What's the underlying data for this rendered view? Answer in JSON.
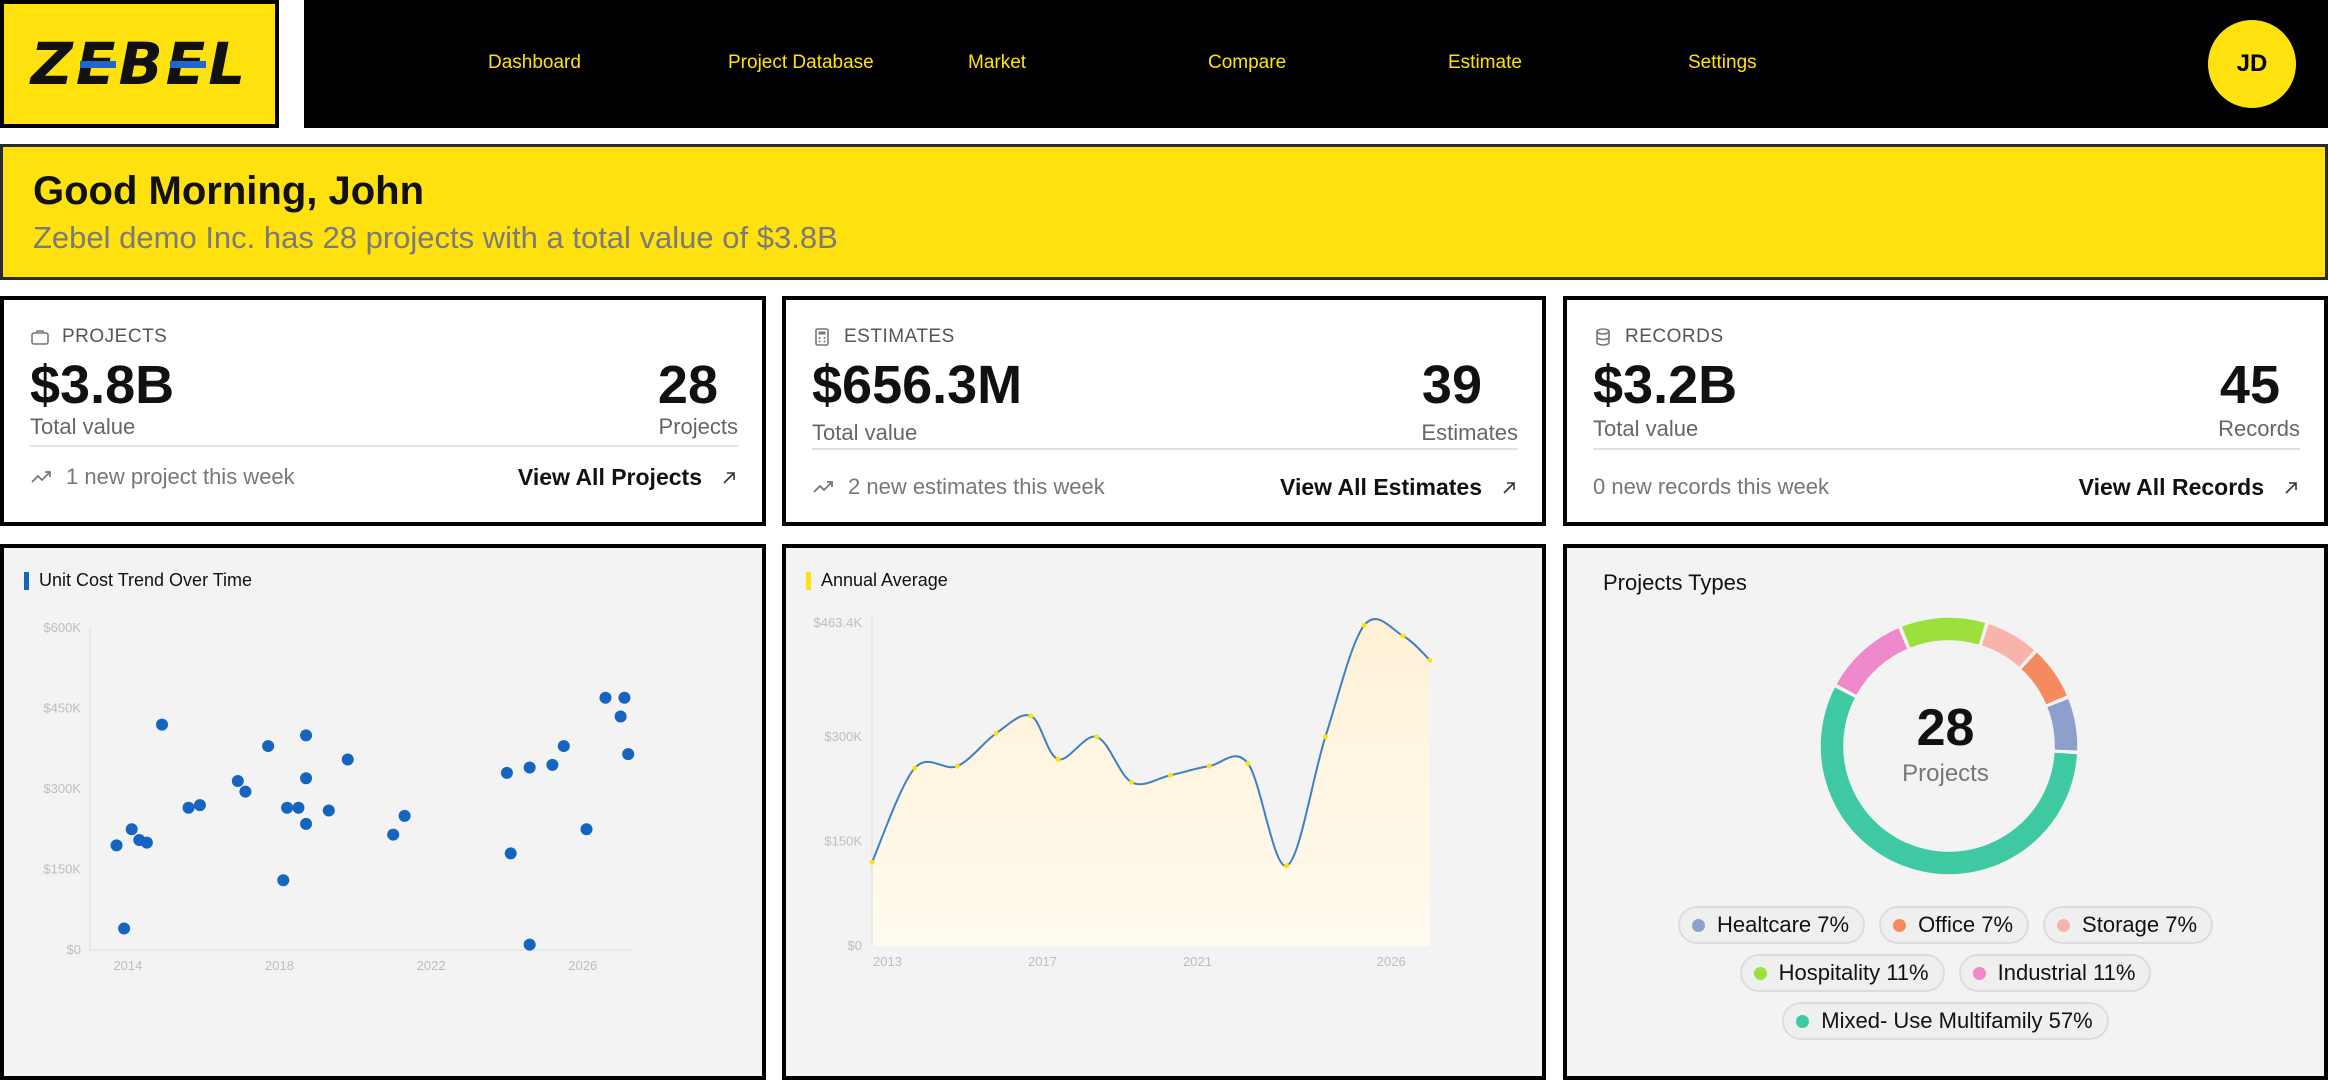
{
  "logo": {
    "letters": [
      "Z",
      "E",
      "B",
      "E",
      "L"
    ]
  },
  "nav": {
    "items": [
      "Dashboard",
      "Project Database",
      "Market",
      "Compare",
      "Estimate",
      "Settings"
    ],
    "avatar_initials": "JD"
  },
  "greeting": {
    "title": "Good Morning, John",
    "subtitle": "Zebel demo Inc. has 28 projects with a total value of $3.8B"
  },
  "stats": {
    "projects": {
      "header": "PROJECTS",
      "value": "$3.8B",
      "value_caption": "Total value",
      "count": "28",
      "count_caption": "Projects",
      "footer": "1 new project this week",
      "link": "View All Projects"
    },
    "estimates": {
      "header": "ESTIMATES",
      "value": "$656.3M",
      "value_caption": "Total value",
      "count": "39",
      "count_caption": "Estimates",
      "footer": "2 new estimates this week",
      "link": "View All Estimates"
    },
    "records": {
      "header": "RECORDS",
      "value": "$3.2B",
      "value_caption": "Total value",
      "count": "45",
      "count_caption": "Records",
      "footer": "0 new records this week",
      "link": "View All Records"
    }
  },
  "colors": {
    "accent": "#FFE20D",
    "navbar": "#000000",
    "scatter": "#1565C0",
    "line": "#3F7FC4",
    "area_fill": "#FFF8E6"
  },
  "chart_data": [
    {
      "type": "scatter",
      "title": "Unit Cost Trend Over Time",
      "y_tick_labels": [
        "$0",
        "$150K",
        "$300K",
        "$450K",
        "$600K"
      ],
      "y_ticks": [
        0,
        150000,
        300000,
        450000,
        600000
      ],
      "x_tick_labels": [
        "2014",
        "2018",
        "2022",
        "2026"
      ],
      "x_ticks": [
        2014,
        2018,
        2022,
        2026
      ],
      "xlim": [
        2013,
        2027.3
      ],
      "ylim": [
        0,
        600000
      ],
      "points": [
        [
          2013.7,
          195000
        ],
        [
          2013.9,
          40000
        ],
        [
          2014.1,
          225000
        ],
        [
          2014.3,
          205000
        ],
        [
          2014.5,
          200000
        ],
        [
          2014.9,
          420000
        ],
        [
          2015.6,
          265000
        ],
        [
          2015.9,
          270000
        ],
        [
          2016.9,
          315000
        ],
        [
          2017.1,
          295000
        ],
        [
          2017.7,
          380000
        ],
        [
          2018.1,
          130000
        ],
        [
          2018.2,
          265000
        ],
        [
          2018.5,
          265000
        ],
        [
          2018.7,
          400000
        ],
        [
          2018.7,
          320000
        ],
        [
          2018.7,
          235000
        ],
        [
          2019.3,
          260000
        ],
        [
          2019.8,
          355000
        ],
        [
          2021.0,
          215000
        ],
        [
          2021.3,
          250000
        ],
        [
          2024.0,
          330000
        ],
        [
          2024.1,
          180000
        ],
        [
          2024.6,
          10000
        ],
        [
          2024.6,
          340000
        ],
        [
          2025.2,
          345000
        ],
        [
          2025.5,
          380000
        ],
        [
          2026.1,
          225000
        ],
        [
          2026.6,
          470000
        ],
        [
          2027.1,
          470000
        ],
        [
          2027.0,
          435000
        ],
        [
          2027.2,
          365000
        ]
      ]
    },
    {
      "type": "area",
      "title": "Annual Average",
      "y_tick_labels": [
        "$0",
        "$150K",
        "$300K",
        "$463.4K"
      ],
      "y_ticks": [
        0,
        150000,
        300000,
        463400
      ],
      "x_tick_labels": [
        "2013",
        "2017",
        "2021",
        "2026"
      ],
      "x_ticks": [
        2013,
        2017,
        2021,
        2026
      ],
      "xlim": [
        2012.6,
        2027
      ],
      "ylim": [
        0,
        463400
      ],
      "x": [
        2012.6,
        2013.7,
        2014.8,
        2015.8,
        2016.7,
        2017.4,
        2018.4,
        2019.3,
        2020.3,
        2021.3,
        2022.3,
        2023.3,
        2024.3,
        2025.3,
        2026.3,
        2027.0
      ],
      "y": [
        120000,
        255000,
        258000,
        305000,
        330000,
        268000,
        300000,
        235000,
        245000,
        258000,
        262000,
        115000,
        300000,
        460000,
        445000,
        410000
      ]
    },
    {
      "type": "pie",
      "title": "Projects Types",
      "center_value": "28",
      "center_caption": "Projects",
      "slices": [
        {
          "label": "Healtcare",
          "percent": 7,
          "display": "Healtcare 7%",
          "color": "#8DA0CB"
        },
        {
          "label": "Office",
          "percent": 7,
          "display": "Office 7%",
          "color": "#F58A5E"
        },
        {
          "label": "Storage",
          "percent": 7,
          "display": "Storage 7%",
          "color": "#F8B3AA"
        },
        {
          "label": "Hospitality",
          "percent": 11,
          "display": "Hospitality 11%",
          "color": "#9BE03C"
        },
        {
          "label": "Industrial",
          "percent": 11,
          "display": "Industrial 11%",
          "color": "#EE8ACB"
        },
        {
          "label": "Mixed- Use Multifamily",
          "percent": 57,
          "display": "Mixed- Use Multifamily 57%",
          "color": "#3FC9A3"
        }
      ]
    }
  ]
}
